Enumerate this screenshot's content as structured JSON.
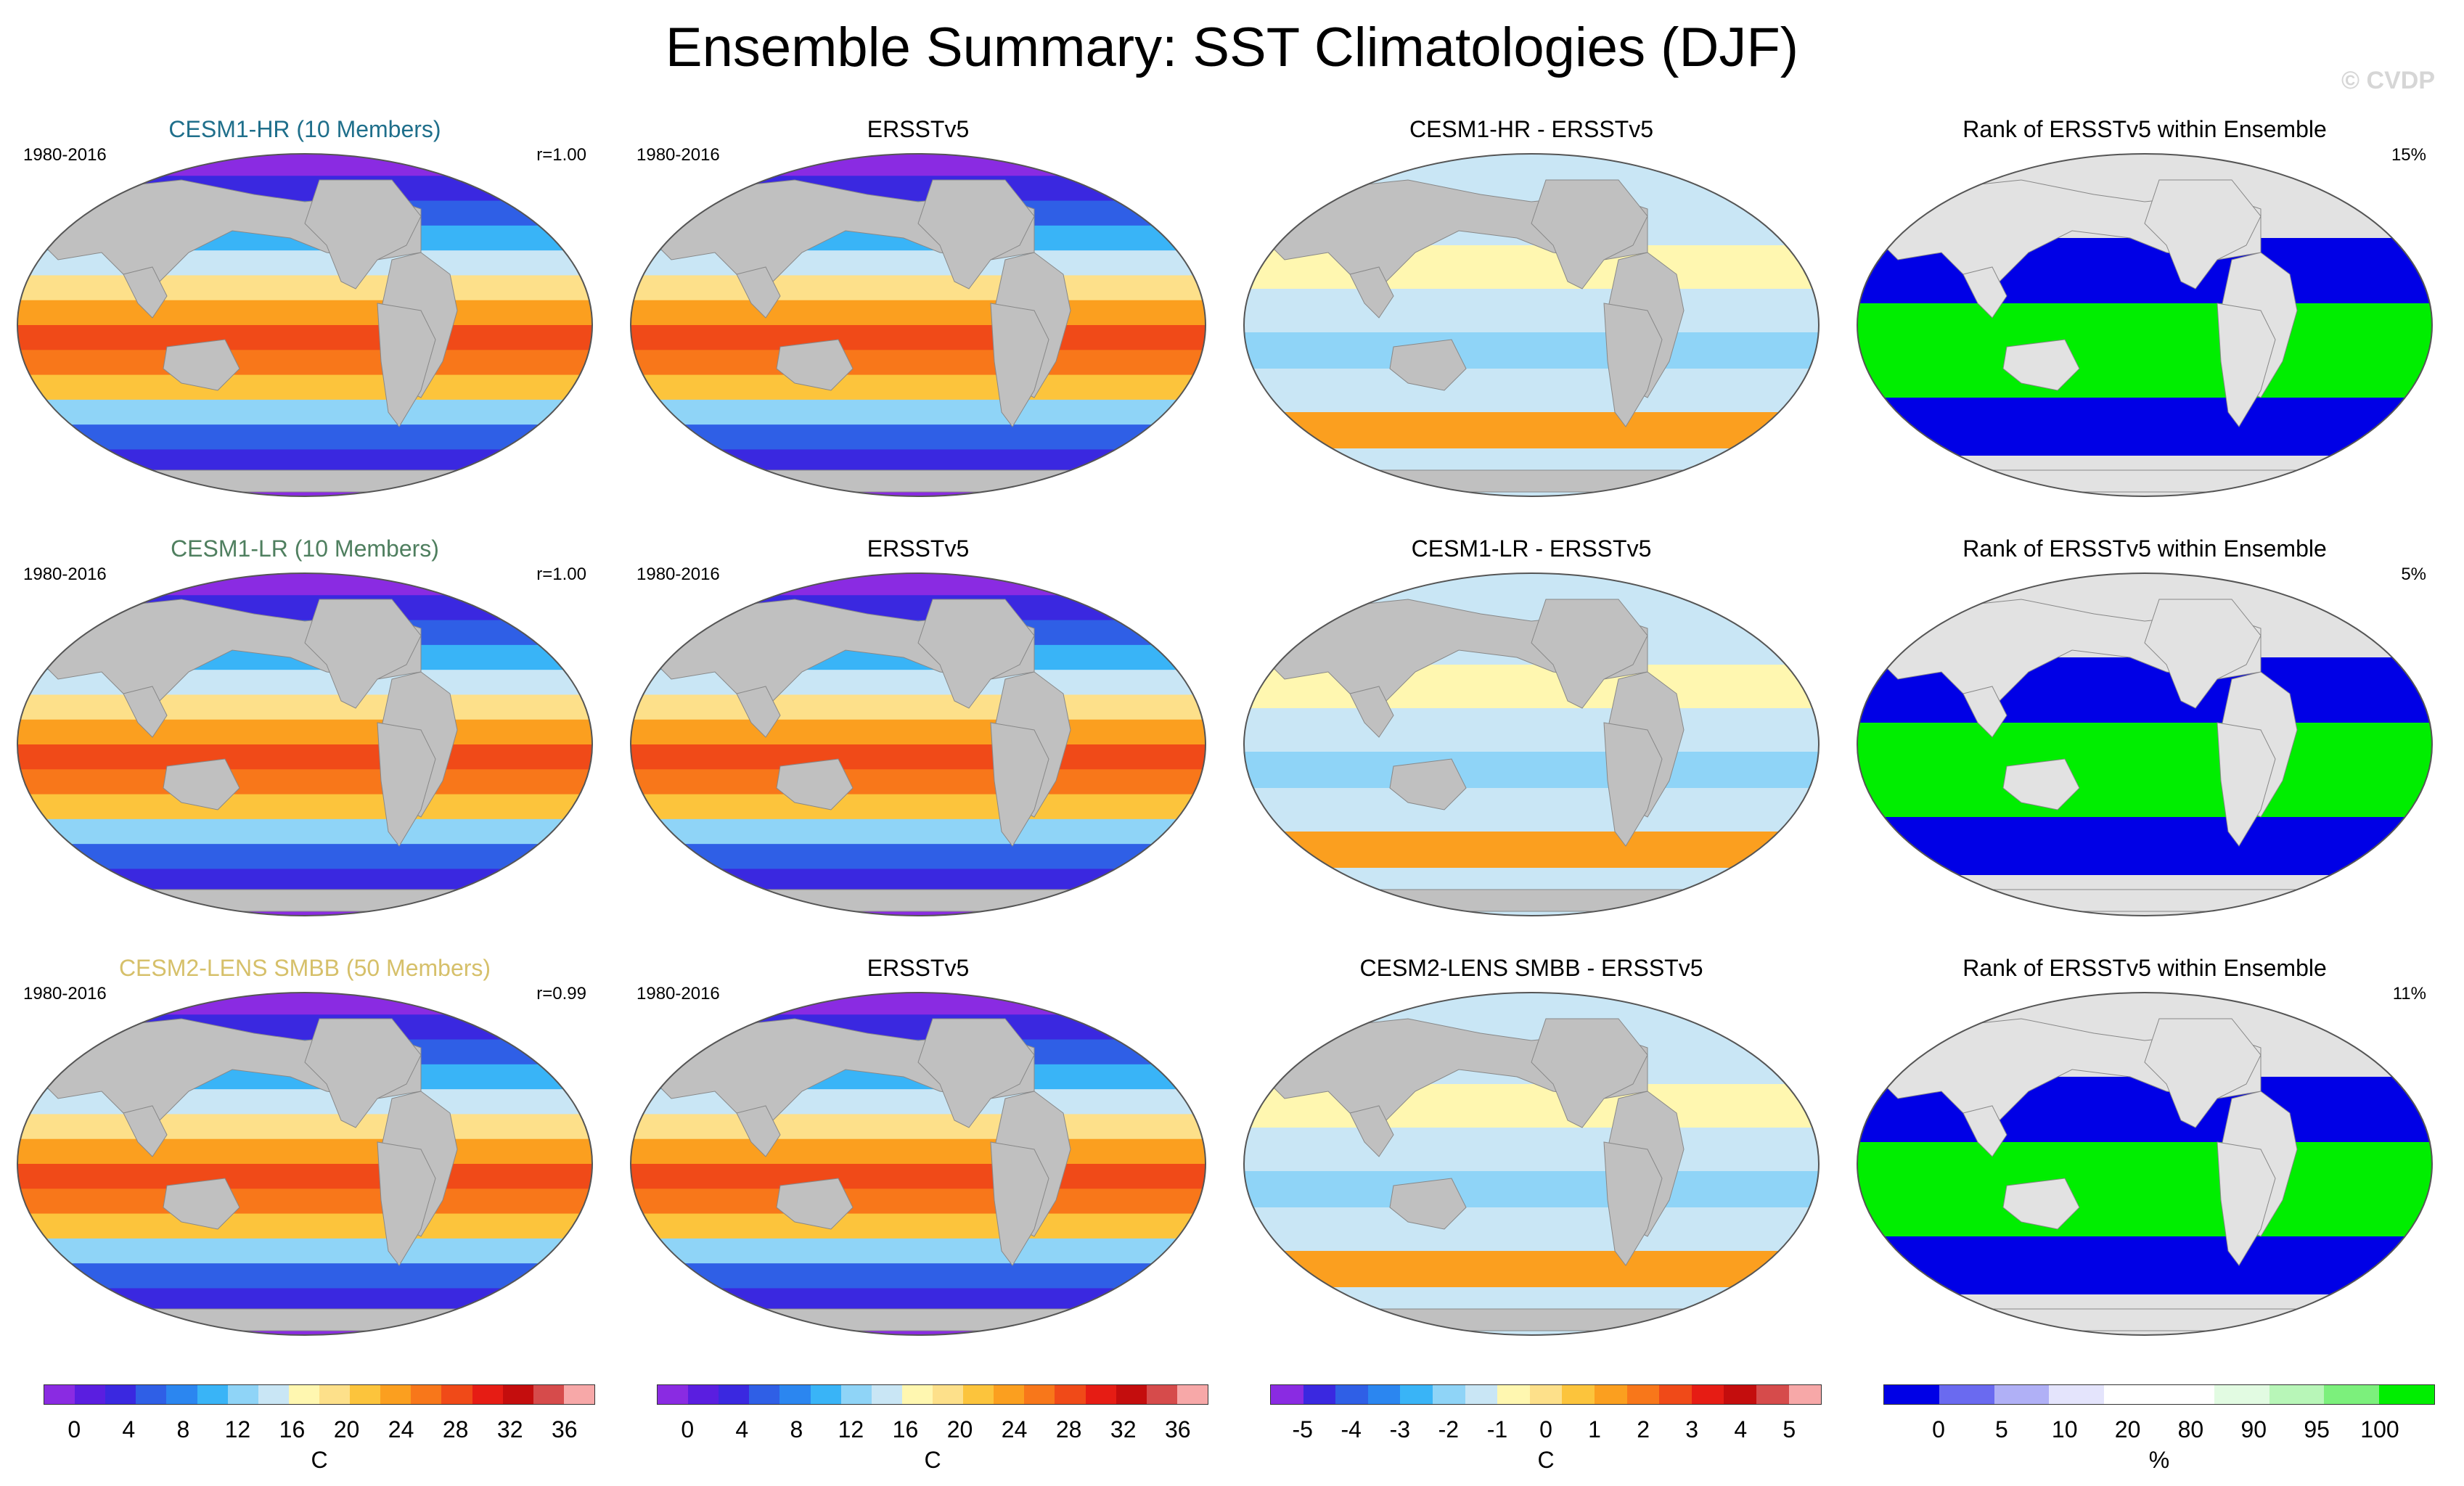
{
  "title": "Ensemble Summary: SST Climatologies (DJF)",
  "watermark": "© CVDP",
  "colors": {
    "ocean_land": "#c0c0c0",
    "hr_title": "#1f6f8b",
    "lr_title": "#4f7f5f",
    "lens_title": "#d6c06a",
    "rank_land": "#e2e2e2",
    "rank_blue": "#0000e6",
    "rank_green": "#00ee00"
  },
  "rows": [
    {
      "model": "CESM1-HR (10 Members)",
      "period": "1980-2016",
      "r": "r=1.00",
      "obs_title": "ERSSTv5",
      "obs_period": "1980-2016",
      "diff_title": "CESM1-HR - ERSSTv5",
      "rank_title": "Rank of ERSSTv5 within Ensemble",
      "rank_pct": "15%"
    },
    {
      "model": "CESM1-LR (10 Members)",
      "period": "1980-2016",
      "r": "r=1.00",
      "obs_title": "ERSSTv5",
      "obs_period": "1980-2016",
      "diff_title": "CESM1-LR - ERSSTv5",
      "rank_title": "Rank of ERSSTv5 within Ensemble",
      "rank_pct": "5%"
    },
    {
      "model": "CESM2-LENS SMBB (50 Members)",
      "period": "1980-2016",
      "r": "r=0.99",
      "obs_title": "ERSSTv5",
      "obs_period": "1980-2016",
      "diff_title": "CESM2-LENS SMBB - ERSSTv5",
      "rank_title": "Rank of ERSSTv5 within Ensemble",
      "rank_pct": "11%"
    }
  ],
  "colorbars": [
    {
      "unit": "C",
      "labels": [
        "0",
        "4",
        "8",
        "12",
        "16",
        "20",
        "24",
        "28",
        "32",
        "36"
      ],
      "colors": [
        "#8a2be2",
        "#5a1ee0",
        "#3a28e0",
        "#2f5fe6",
        "#2b86f0",
        "#39b4f7",
        "#8fd4f7",
        "#c9e6f5",
        "#fff7b0",
        "#fde08a",
        "#fcc43c",
        "#fb9f1f",
        "#f8771a",
        "#f04a18",
        "#e61c14",
        "#c40d0d",
        "#d64b4b",
        "#f7a8a8"
      ]
    },
    {
      "unit": "C",
      "labels": [
        "0",
        "4",
        "8",
        "12",
        "16",
        "20",
        "24",
        "28",
        "32",
        "36"
      ],
      "colors": [
        "#8a2be2",
        "#5a1ee0",
        "#3a28e0",
        "#2f5fe6",
        "#2b86f0",
        "#39b4f7",
        "#8fd4f7",
        "#c9e6f5",
        "#fff7b0",
        "#fde08a",
        "#fcc43c",
        "#fb9f1f",
        "#f8771a",
        "#f04a18",
        "#e61c14",
        "#c40d0d",
        "#d64b4b",
        "#f7a8a8"
      ]
    },
    {
      "unit": "C",
      "labels": [
        "-5",
        "-4",
        "-3",
        "-2",
        "-1",
        "0",
        "1",
        "2",
        "3",
        "4",
        "5"
      ],
      "colors": [
        "#8a2be2",
        "#3a28e0",
        "#2f5fe6",
        "#2b86f0",
        "#39b4f7",
        "#8fd4f7",
        "#c9e6f5",
        "#fff7b0",
        "#fde08a",
        "#fcc43c",
        "#fb9f1f",
        "#f8771a",
        "#f04a18",
        "#e61c14",
        "#c40d0d",
        "#d64b4b",
        "#f7a8a8"
      ]
    },
    {
      "unit": "%",
      "labels": [
        "0",
        "5",
        "10",
        "20",
        "80",
        "90",
        "95",
        "100"
      ],
      "colors": [
        "#0000e6",
        "#6a6af0",
        "#b0b0f6",
        "#e4e4fc",
        "#ffffff",
        "#ffffff",
        "#e2fbe2",
        "#b8f6b8",
        "#7cf07c",
        "#00ee00"
      ]
    }
  ]
}
